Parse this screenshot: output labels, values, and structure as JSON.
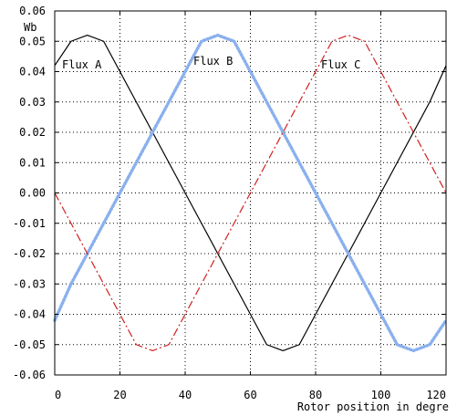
{
  "chart_data": {
    "type": "line",
    "title": "",
    "xlabel": "Rotor position in degre",
    "ylabel": "Wb",
    "xlim": [
      0,
      120
    ],
    "ylim": [
      -0.06,
      0.06
    ],
    "grid": true,
    "legend": "none",
    "x_ticks": [
      "0",
      "20",
      "40",
      "60",
      "80",
      "100",
      "120"
    ],
    "y_ticks": [
      "0.06",
      "0.05",
      "0.04",
      "0.03",
      "0.02",
      "0.01",
      "0.00",
      "-0.01",
      "-0.02",
      "-0.03",
      "-0.04",
      "-0.05",
      "-0.06"
    ],
    "series": [
      {
        "name": "Flux A",
        "color": "#000000",
        "style": "solid",
        "x": [
          0,
          5,
          10,
          15,
          20,
          25,
          30,
          35,
          40,
          45,
          50,
          55,
          60,
          65,
          70,
          75,
          80,
          85,
          90,
          95,
          100,
          105,
          110,
          115,
          120
        ],
        "y": [
          0.042,
          0.05,
          0.052,
          0.05,
          0.04,
          0.03,
          0.02,
          0.01,
          0.0,
          -0.01,
          -0.02,
          -0.03,
          -0.04,
          -0.05,
          -0.052,
          -0.05,
          -0.04,
          -0.03,
          -0.02,
          -0.01,
          0.0,
          0.01,
          0.02,
          0.03,
          0.042
        ]
      },
      {
        "name": "Flux B",
        "color": "#8ab0ee",
        "style": "dotted",
        "x": [
          0,
          5,
          10,
          15,
          20,
          25,
          30,
          35,
          40,
          45,
          50,
          55,
          60,
          65,
          70,
          75,
          80,
          85,
          90,
          95,
          100,
          105,
          110,
          115,
          120
        ],
        "y": [
          -0.042,
          -0.03,
          -0.02,
          -0.01,
          0.0,
          0.01,
          0.02,
          0.03,
          0.04,
          0.05,
          0.052,
          0.05,
          0.04,
          0.03,
          0.02,
          0.01,
          0.0,
          -0.01,
          -0.02,
          -0.03,
          -0.04,
          -0.05,
          -0.052,
          -0.05,
          -0.042
        ]
      },
      {
        "name": "Flux C",
        "color": "#d02020",
        "style": "dashdot",
        "x": [
          0,
          5,
          10,
          15,
          20,
          25,
          30,
          35,
          40,
          45,
          50,
          55,
          60,
          65,
          70,
          75,
          80,
          85,
          90,
          95,
          100,
          105,
          110,
          115,
          120
        ],
        "y": [
          0.0,
          -0.01,
          -0.02,
          -0.03,
          -0.04,
          -0.05,
          -0.052,
          -0.05,
          -0.04,
          -0.03,
          -0.02,
          -0.01,
          0.0,
          0.01,
          0.02,
          0.03,
          0.04,
          0.05,
          0.052,
          0.05,
          0.04,
          0.03,
          0.02,
          0.01,
          0.0
        ]
      }
    ]
  }
}
